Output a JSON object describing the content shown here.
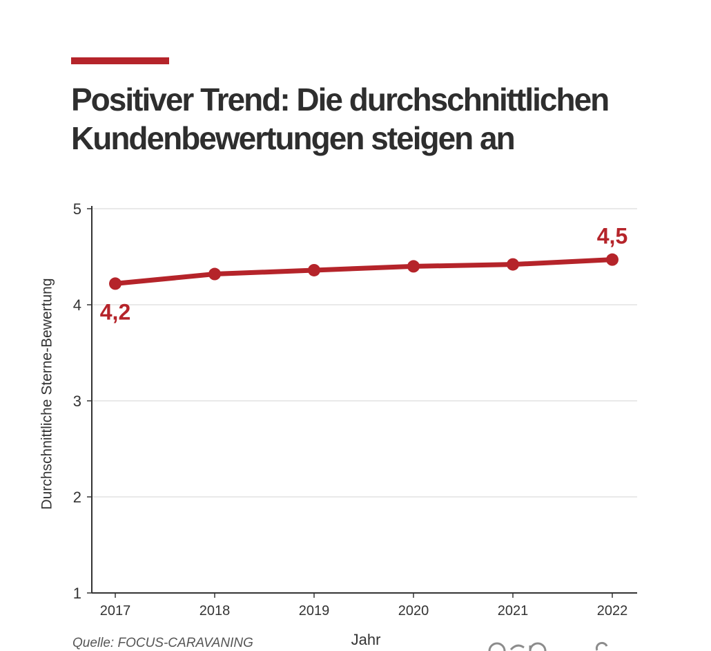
{
  "colors": {
    "accent": "#b5242a",
    "text": "#333333",
    "grid": "#e2e2e2",
    "axis": "#333333",
    "logo": "#8c8c8c"
  },
  "source": "Quelle: FOCUS-CARAVANING",
  "logos": [
    "asp-logo",
    "partner-logo"
  ],
  "chart_data": {
    "type": "line",
    "title": "Positiver Trend: Die durchschnittlichen Kundenbewertungen steigen an",
    "xlabel": "Jahr",
    "ylabel": "Durchschnittliche Sterne-Bewertung",
    "categories": [
      "2017",
      "2018",
      "2019",
      "2020",
      "2021",
      "2022"
    ],
    "series": [
      {
        "values": [
          4.22,
          4.32,
          4.36,
          4.4,
          4.42,
          4.47
        ],
        "color": "#b5242a",
        "markers": true
      }
    ],
    "ylim": [
      1,
      5
    ],
    "yticks": [
      1,
      2,
      3,
      4,
      5
    ],
    "grid": true,
    "legend": "none",
    "data_labels": [
      {
        "category": "2017",
        "text": "4,2",
        "position": "below"
      },
      {
        "category": "2022",
        "text": "4,5",
        "position": "above"
      }
    ]
  }
}
